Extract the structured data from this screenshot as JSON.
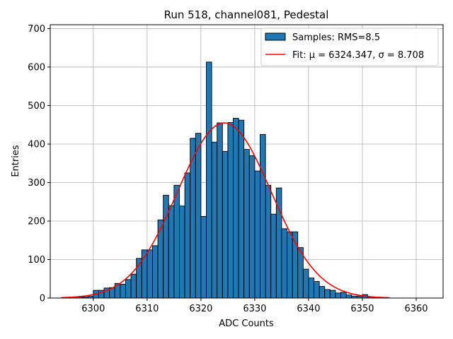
{
  "chart_data": {
    "type": "bar",
    "title": "Run 518, channel081, Pedestal",
    "xlabel": "ADC Counts",
    "ylabel": "Entries",
    "xlim": [
      6292,
      6365
    ],
    "ylim": [
      0,
      710
    ],
    "xticks": [
      6300,
      6310,
      6320,
      6330,
      6340,
      6350,
      6360
    ],
    "yticks": [
      0,
      100,
      200,
      300,
      400,
      500,
      600,
      700
    ],
    "grid": true,
    "legend_position": "top-right",
    "colors": {
      "bar_fill": "#1f77b4",
      "bar_edge": "#000000",
      "fit_line": "#ff0000",
      "grid": "#b0b0b0"
    },
    "histogram": {
      "name": "Samples: RMS=8.5",
      "bin_width": 1,
      "bins_start": [
        6296,
        6297,
        6298,
        6299,
        6300,
        6301,
        6302,
        6303,
        6304,
        6305,
        6306,
        6307,
        6308,
        6309,
        6310,
        6311,
        6312,
        6313,
        6314,
        6315,
        6316,
        6317,
        6318,
        6319,
        6320,
        6321,
        6322,
        6323,
        6324,
        6325,
        6326,
        6327,
        6328,
        6329,
        6330,
        6331,
        6332,
        6333,
        6334,
        6335,
        6336,
        6337,
        6338,
        6339,
        6340,
        6341,
        6342,
        6343,
        6344,
        6345,
        6346,
        6347,
        6348,
        6349,
        6350,
        6351,
        6352,
        6353,
        6354
      ],
      "counts": [
        2,
        3,
        3,
        5,
        20,
        20,
        26,
        27,
        38,
        36,
        48,
        62,
        103,
        125,
        125,
        136,
        203,
        267,
        240,
        293,
        239,
        325,
        415,
        428,
        212,
        613,
        405,
        455,
        381,
        456,
        467,
        462,
        386,
        370,
        330,
        425,
        293,
        218,
        286,
        180,
        172,
        172,
        131,
        75,
        52,
        43,
        30,
        22,
        20,
        13,
        15,
        8,
        5,
        5,
        9,
        3,
        2,
        2,
        1
      ]
    },
    "fit": {
      "name": "Fit: μ = 6324.347, σ = 8.708",
      "mu": 6324.347,
      "sigma": 8.708,
      "amplitude": 455,
      "x_range": [
        6294,
        6355
      ]
    }
  }
}
